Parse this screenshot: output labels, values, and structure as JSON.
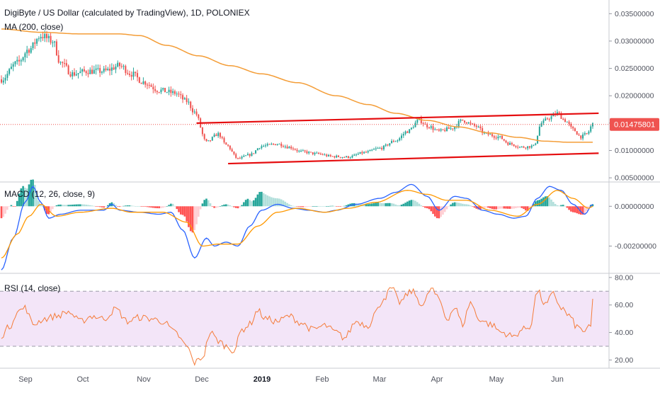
{
  "colors": {
    "up": "#26a69a",
    "down": "#ef5350",
    "ma": "#f49d37",
    "channel": "#e50e10",
    "macd_line": "#2962ff",
    "signal_line": "#ff9800",
    "hist_up_strong": "#26a69a",
    "hist_up_weak": "#b2dfdb",
    "hist_down_strong": "#ff5252",
    "hist_down_weak": "#ffcdd2",
    "rsi_line": "#f57c3a",
    "rsi_band": "#f3e5f8",
    "price_tag": "#ef5350"
  },
  "header": {
    "title": "DigiByte / US Dollar (calculated by TradingView), 1D, POLONIEX",
    "ma_label": "MA (200, close)"
  },
  "macd_panel": {
    "label": "MACD (12, 26, close, 9)"
  },
  "rsi_panel": {
    "label": "RSI (14, close)"
  },
  "price_tag": "0.01475801",
  "chart_data": [
    {
      "type": "candlestick",
      "title": "DigiByte / US Dollar (calculated by TradingView), 1D, POLONIEX",
      "ylim": [
        0.0045,
        0.0375
      ],
      "yticks": [
        "0.03500000",
        "0.03000000",
        "0.02500000",
        "0.02000000",
        "0.01500000",
        "0.01000000",
        "0.00500000"
      ],
      "ytick_values": [
        0.035,
        0.03,
        0.025,
        0.02,
        0.015,
        0.01,
        0.005
      ],
      "last_price": 0.01475801,
      "x_labels": [
        "Sep",
        "Oct",
        "Nov",
        "Dec",
        "2019",
        "Feb",
        "Mar",
        "Apr",
        "May",
        "Jun"
      ],
      "days": 300,
      "close_anchors": [
        [
          0,
          0.023
        ],
        [
          8,
          0.026
        ],
        [
          14,
          0.0285
        ],
        [
          20,
          0.031
        ],
        [
          26,
          0.03
        ],
        [
          30,
          0.026
        ],
        [
          36,
          0.024
        ],
        [
          44,
          0.0245
        ],
        [
          52,
          0.0245
        ],
        [
          60,
          0.0255
        ],
        [
          66,
          0.024
        ],
        [
          72,
          0.0225
        ],
        [
          80,
          0.021
        ],
        [
          88,
          0.0205
        ],
        [
          94,
          0.019
        ],
        [
          98,
          0.017
        ],
        [
          104,
          0.0115
        ],
        [
          110,
          0.013
        ],
        [
          114,
          0.011
        ],
        [
          120,
          0.0085
        ],
        [
          126,
          0.0092
        ],
        [
          132,
          0.0108
        ],
        [
          140,
          0.0112
        ],
        [
          146,
          0.0106
        ],
        [
          152,
          0.0098
        ],
        [
          160,
          0.0094
        ],
        [
          168,
          0.0089
        ],
        [
          176,
          0.0088
        ],
        [
          184,
          0.0096
        ],
        [
          192,
          0.0104
        ],
        [
          200,
          0.0118
        ],
        [
          206,
          0.0135
        ],
        [
          212,
          0.0155
        ],
        [
          216,
          0.0145
        ],
        [
          222,
          0.0135
        ],
        [
          228,
          0.014
        ],
        [
          234,
          0.0155
        ],
        [
          240,
          0.0145
        ],
        [
          246,
          0.013
        ],
        [
          252,
          0.0125
        ],
        [
          258,
          0.0112
        ],
        [
          264,
          0.0106
        ],
        [
          270,
          0.0108
        ],
        [
          274,
          0.015
        ],
        [
          278,
          0.016
        ],
        [
          282,
          0.0168
        ],
        [
          286,
          0.0155
        ],
        [
          290,
          0.0138
        ],
        [
          294,
          0.0125
        ],
        [
          297,
          0.013
        ],
        [
          300,
          0.0148
        ]
      ],
      "ma200_anchors": [
        [
          0,
          0.0322
        ],
        [
          20,
          0.0316
        ],
        [
          40,
          0.0313
        ],
        [
          60,
          0.0313
        ],
        [
          70,
          0.031
        ],
        [
          84,
          0.0292
        ],
        [
          100,
          0.0273
        ],
        [
          116,
          0.0255
        ],
        [
          132,
          0.024
        ],
        [
          150,
          0.0224
        ],
        [
          170,
          0.02
        ],
        [
          186,
          0.0184
        ],
        [
          200,
          0.0168
        ],
        [
          216,
          0.0155
        ],
        [
          232,
          0.0143
        ],
        [
          248,
          0.0132
        ],
        [
          262,
          0.0124
        ],
        [
          276,
          0.0117
        ],
        [
          288,
          0.0115
        ],
        [
          300,
          0.0115
        ]
      ],
      "channel_upper": [
        [
          99,
          0.015
        ],
        [
          303,
          0.0168
        ]
      ],
      "channel_lower": [
        [
          115,
          0.0076
        ],
        [
          303,
          0.0095
        ]
      ]
    },
    {
      "type": "line",
      "title": "MACD (12, 26, close, 9)",
      "ylim": [
        -0.0033,
        0.00115
      ],
      "yticks": [
        "0.00000000",
        "-0.00200000"
      ],
      "ytick_values": [
        0.0,
        -0.002
      ],
      "macd_anchors": [
        [
          0,
          -0.0032
        ],
        [
          6,
          -0.0016
        ],
        [
          12,
          0.0002
        ],
        [
          16,
          0.001
        ],
        [
          20,
          0.0002
        ],
        [
          24,
          -0.0006
        ],
        [
          30,
          -0.0004
        ],
        [
          40,
          -0.0002
        ],
        [
          52,
          -0.0002
        ],
        [
          56,
          0.0001
        ],
        [
          60,
          -0.0002
        ],
        [
          70,
          -0.0003
        ],
        [
          80,
          -0.0004
        ],
        [
          86,
          -0.0003
        ],
        [
          92,
          -0.0012
        ],
        [
          98,
          -0.0026
        ],
        [
          104,
          -0.0016
        ],
        [
          108,
          -0.002
        ],
        [
          114,
          -0.0018
        ],
        [
          120,
          -0.002
        ],
        [
          126,
          -0.001
        ],
        [
          132,
          -0.0002
        ],
        [
          140,
          0.0001
        ],
        [
          148,
          -0.0001
        ],
        [
          156,
          -0.0002
        ],
        [
          164,
          -0.0003
        ],
        [
          170,
          -0.0002
        ],
        [
          180,
          0.0001
        ],
        [
          192,
          0.0004
        ],
        [
          200,
          0.0007
        ],
        [
          208,
          0.0011
        ],
        [
          216,
          0.0005
        ],
        [
          222,
          -0.0002
        ],
        [
          230,
          0.0005
        ],
        [
          236,
          0.0004
        ],
        [
          244,
          -0.0002
        ],
        [
          252,
          -0.0004
        ],
        [
          260,
          -0.0006
        ],
        [
          266,
          -0.0005
        ],
        [
          272,
          0.0004
        ],
        [
          278,
          0.001
        ],
        [
          284,
          0.0008
        ],
        [
          290,
          0.0001
        ],
        [
          296,
          -0.0004
        ],
        [
          300,
          0.0001
        ]
      ],
      "signal_anchors": [
        [
          0,
          -0.0026
        ],
        [
          8,
          -0.0014
        ],
        [
          14,
          -0.0005
        ],
        [
          20,
          0.0001
        ],
        [
          28,
          -0.0005
        ],
        [
          40,
          -0.0003
        ],
        [
          56,
          -0.0001
        ],
        [
          66,
          -0.0003
        ],
        [
          82,
          -0.0003
        ],
        [
          94,
          -0.0008
        ],
        [
          102,
          -0.002
        ],
        [
          110,
          -0.0019
        ],
        [
          120,
          -0.0019
        ],
        [
          130,
          -0.001
        ],
        [
          140,
          -0.0003
        ],
        [
          150,
          -0.0001
        ],
        [
          164,
          -0.0003
        ],
        [
          176,
          -0.0001
        ],
        [
          190,
          0.0002
        ],
        [
          206,
          0.0008
        ],
        [
          216,
          0.0006
        ],
        [
          226,
          0.0003
        ],
        [
          236,
          0.0003
        ],
        [
          248,
          -0.0002
        ],
        [
          262,
          -0.0005
        ],
        [
          272,
          0.0001
        ],
        [
          282,
          0.0008
        ],
        [
          290,
          0.0004
        ],
        [
          298,
          -0.0001
        ],
        [
          300,
          0.0
        ]
      ]
    },
    {
      "type": "line",
      "title": "RSI (14, close)",
      "ylim": [
        14,
        82
      ],
      "yticks": [
        "80.00",
        "60.00",
        "40.00",
        "20.00"
      ],
      "ytick_values": [
        80,
        60,
        40,
        20
      ],
      "band": [
        30,
        70
      ],
      "rsi_anchors": [
        [
          0,
          38
        ],
        [
          4,
          44
        ],
        [
          8,
          55
        ],
        [
          12,
          58
        ],
        [
          16,
          46
        ],
        [
          22,
          50
        ],
        [
          28,
          52
        ],
        [
          34,
          55
        ],
        [
          40,
          48
        ],
        [
          46,
          52
        ],
        [
          52,
          50
        ],
        [
          58,
          57
        ],
        [
          64,
          48
        ],
        [
          70,
          51
        ],
        [
          76,
          50
        ],
        [
          82,
          48
        ],
        [
          88,
          40
        ],
        [
          94,
          30
        ],
        [
          98,
          18
        ],
        [
          102,
          22
        ],
        [
          106,
          40
        ],
        [
          110,
          34
        ],
        [
          114,
          30
        ],
        [
          118,
          27
        ],
        [
          122,
          42
        ],
        [
          126,
          46
        ],
        [
          130,
          56
        ],
        [
          134,
          50
        ],
        [
          140,
          48
        ],
        [
          146,
          52
        ],
        [
          152,
          47
        ],
        [
          158,
          42
        ],
        [
          164,
          45
        ],
        [
          170,
          40
        ],
        [
          174,
          36
        ],
        [
          180,
          48
        ],
        [
          186,
          45
        ],
        [
          190,
          55
        ],
        [
          194,
          65
        ],
        [
          198,
          72
        ],
        [
          202,
          62
        ],
        [
          208,
          70
        ],
        [
          214,
          60
        ],
        [
          218,
          72
        ],
        [
          222,
          64
        ],
        [
          226,
          50
        ],
        [
          230,
          58
        ],
        [
          234,
          46
        ],
        [
          238,
          62
        ],
        [
          242,
          50
        ],
        [
          248,
          46
        ],
        [
          254,
          40
        ],
        [
          260,
          37
        ],
        [
          264,
          42
        ],
        [
          268,
          44
        ],
        [
          272,
          70
        ],
        [
          276,
          60
        ],
        [
          280,
          68
        ],
        [
          284,
          58
        ],
        [
          288,
          52
        ],
        [
          292,
          44
        ],
        [
          296,
          41
        ],
        [
          299,
          44
        ],
        [
          300,
          64
        ]
      ]
    }
  ]
}
